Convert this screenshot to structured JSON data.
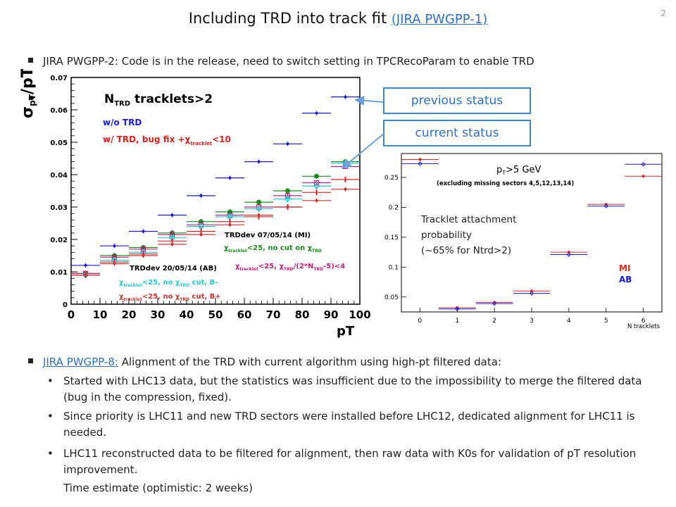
{
  "slide": {
    "title": "Including TRD into track fit",
    "title_link": "(JIRA PWGPP-1)",
    "page_number": "2"
  },
  "bullet1": "JIRA PWGPP-2: Code is in the release, need to switch setting in TPCRecoParam to enable TRD",
  "status_boxes": {
    "previous": "previous status",
    "current": "current status"
  },
  "left_plot": {
    "header": "N",
    "header_sub": "TRD",
    "header_rest": " tracklets>2",
    "label_wo": "w/o TRD",
    "label_w": "w/ TRD, bug fix +",
    "label_w_cut": "<10",
    "sym_chi": "χ",
    "sym_tracklet": "tracklet",
    "sym_trd": "TRD",
    "trd_mi": "TRDdev 07/05/14 (MI)",
    "trd_ab": "TRDdev 20/05/14 (AB)",
    "leg_mi1": "<25, no cut on ",
    "leg_mi2": "<25, ",
    "leg_mi2b": "/(2*N",
    "leg_mi2c": "-5)<4",
    "leg_ab1": "<25, no ",
    "leg_ab1b": " cut, B-",
    "leg_ab2": "<25, no ",
    "leg_ab2b": " cut, B+",
    "ylabel": "σ",
    "ylabel_sub": "pT",
    "ylabel_rest": "/pT",
    "xlabel": "pT",
    "colors": {
      "wo": "#1a1ad8",
      "w_bugfix": "#e32020",
      "mi": "#1a8a1a",
      "ab_minus": "#20c8d8",
      "ab_plus": "#cc3333",
      "mi_open": "#c0207a"
    }
  },
  "right_plot": {
    "label_pt": "p",
    "label_pt_sub": "T",
    "label_pt_rest": ">5 GeV",
    "excluding": "(excluding missing sectors 4,5,12,13,14)",
    "annot1": "Tracklet attachment",
    "annot2": "probability",
    "annot3": "(~65% for Ntrd>2)",
    "leg_mi": "MI",
    "leg_ab": "AB",
    "xlabel": "N tracklets",
    "colors": {
      "mi": "#e32020",
      "ab": "#1a1ad8"
    }
  },
  "chart_data": [
    {
      "type": "scatter",
      "xlabel": "pT",
      "ylabel": "σpT/pT",
      "xlim": [
        0,
        100
      ],
      "ylim": [
        0,
        0.07
      ],
      "x_ticks": [
        "0",
        "10",
        "20",
        "30",
        "40",
        "50",
        "60",
        "70",
        "80",
        "90",
        "100"
      ],
      "y_ticks": [
        "0",
        "0.01",
        "0.02",
        "0.03",
        "0.04",
        "0.05",
        "0.06",
        "0.07"
      ],
      "x": [
        5,
        15,
        25,
        35,
        45,
        55,
        65,
        75,
        85,
        95
      ],
      "series": [
        {
          "name": "w/o TRD",
          "values": [
            0.012,
            0.018,
            0.0225,
            0.0275,
            0.0335,
            0.039,
            0.044,
            0.0495,
            0.059,
            0.064
          ]
        },
        {
          "values": [
            0.0095,
            0.015,
            0.0175,
            0.022,
            0.0255,
            0.0285,
            0.0315,
            0.035,
            0.0395,
            0.044
          ]
        },
        {
          "values": [
            0.0095,
            0.0145,
            0.017,
            0.0215,
            0.0245,
            0.0275,
            0.03,
            0.0335,
            0.0375,
            0.0425
          ]
        },
        {
          "values": [
            0.009,
            0.0135,
            0.016,
            0.0205,
            0.024,
            0.027,
            0.0295,
            0.0325,
            0.0365,
            0.0435
          ]
        },
        {
          "values": [
            0.009,
            0.013,
            0.0155,
            0.0195,
            0.0225,
            0.0255,
            0.027,
            0.03,
            0.0345,
            0.0385
          ]
        },
        {
          "values": [
            0.009,
            0.0125,
            0.015,
            0.0185,
            0.0215,
            0.0245,
            0.0275,
            0.03,
            0.032,
            0.0355
          ]
        }
      ]
    },
    {
      "type": "scatter",
      "xlabel": "N tracklets",
      "xlim": [
        -0.5,
        6.5
      ],
      "ylim": [
        0.025,
        0.29
      ],
      "x_ticks": [
        "0",
        "1",
        "2",
        "3",
        "4",
        "5",
        "6"
      ],
      "y_ticks": [
        "0.05",
        "0.1",
        "0.15",
        "0.2",
        "0.25"
      ],
      "x": [
        0,
        1,
        2,
        3,
        4,
        5,
        6
      ],
      "series": [
        {
          "name": "MI",
          "values": [
            0.28,
            0.032,
            0.041,
            0.06,
            0.125,
            0.205,
            0.252
          ]
        },
        {
          "name": "AB",
          "values": [
            0.273,
            0.03,
            0.039,
            0.056,
            0.121,
            0.202,
            0.272
          ]
        }
      ]
    }
  ],
  "section2": {
    "link": "JIRA PWGPP-8:",
    "text": " Alignment of the TRD with current algorithm using high-pt filtered data:",
    "items": [
      "Started with LHC13 data, but the statistics was insufficient due to the impossibility to merge the filtered data (bug in the compression, fixed).",
      "Since priority is LHC11 and new TRD sectors were installed before LHC12, dedicated alignment for LHC11 is needed.",
      "LHC11 reconstructed data to be filtered for alignment, then raw data with K0s for validation of pT resolution improvement."
    ],
    "time_estimate": "Time estimate (optimistic: 2 weeks)"
  }
}
